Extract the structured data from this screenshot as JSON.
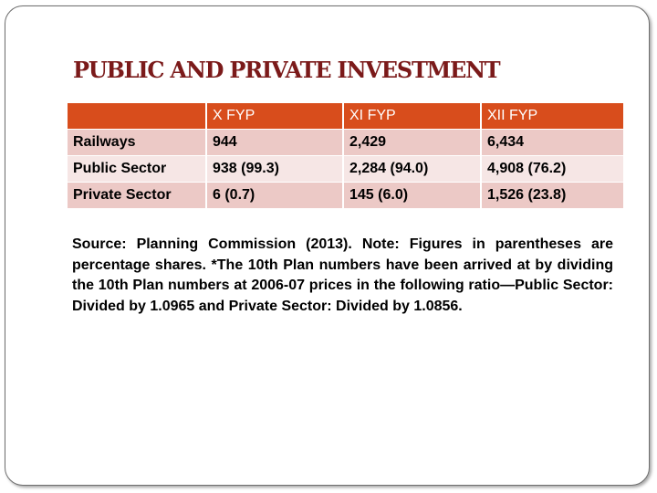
{
  "slide": {
    "title": "PUBLIC AND PRIVATE INVESTMENT",
    "table": {
      "headers": [
        "",
        "X FYP",
        "XI FYP",
        "XII FYP"
      ],
      "rows": [
        [
          "Railways",
          "944",
          "2,429",
          "6,434"
        ],
        [
          "Public Sector",
          "938 (99.3)",
          "2,284 (94.0)",
          "4,908 (76.2)"
        ],
        [
          "Private Sector",
          "6 (0.7)",
          "145 (6.0)",
          "1,526 (23.8)"
        ]
      ]
    },
    "note": "Source: Planning Commission (2013). Note: Figures in parentheses are percentage shares. *The 10th Plan numbers have been arrived at by dividing the 10th Plan numbers at 2006-07 prices in the following ratio—Public Sector: Divided by 1.0965 and Private Sector: Divided by 1.0856."
  },
  "colors": {
    "header_bg": "#d84d1c",
    "row_dark": "#ecc9c6",
    "row_light": "#f6e6e5",
    "title": "#7b1a1a"
  }
}
